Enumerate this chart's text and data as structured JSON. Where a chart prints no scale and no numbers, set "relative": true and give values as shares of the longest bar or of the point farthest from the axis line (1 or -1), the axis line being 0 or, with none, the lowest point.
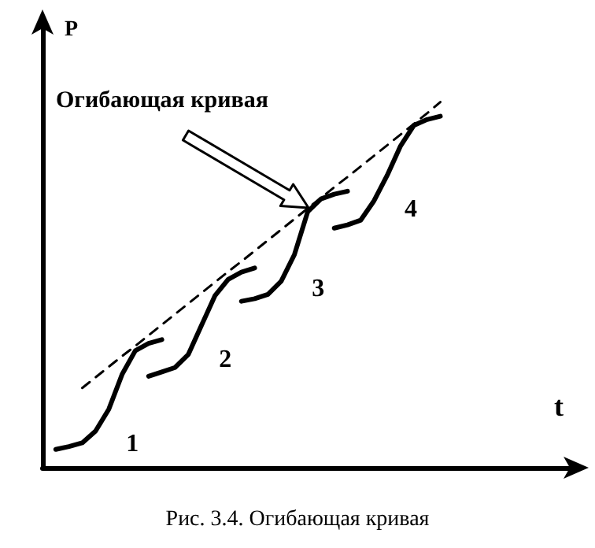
{
  "chart_data": {
    "type": "line",
    "relative": true,
    "title": "Рис. 3.4. Огибающая кривая",
    "xlabel": "t",
    "ylabel": "P",
    "grid": false,
    "legend": false,
    "marker": "none",
    "categories": [
      null,
      null,
      null,
      null,
      null,
      null,
      null,
      null,
      null,
      null,
      null,
      null,
      null,
      null,
      null,
      null,
      null,
      null,
      null,
      null,
      null,
      null,
      null,
      null,
      null,
      null,
      null,
      null,
      null,
      null,
      null,
      null,
      null,
      null,
      null,
      null,
      null,
      null,
      null,
      null,
      null
    ],
    "series": [
      {
        "name": "1",
        "color": "#000000",
        "values": [
          null,
          0.05,
          0.058,
          0.068,
          0.1,
          0.16,
          0.255,
          0.32,
          0.34,
          0.35,
          null,
          null,
          null,
          null,
          null,
          null,
          null,
          null,
          null,
          null,
          null,
          null,
          null,
          null,
          null,
          null,
          null,
          null,
          null,
          null,
          null,
          null,
          null,
          null,
          null,
          null,
          null,
          null,
          null,
          null,
          null
        ]
      },
      {
        "name": "2",
        "color": "#000000",
        "values": [
          null,
          null,
          null,
          null,
          null,
          null,
          null,
          null,
          0.25,
          0.262,
          0.274,
          0.31,
          0.39,
          0.47,
          0.515,
          0.535,
          0.546,
          null,
          null,
          null,
          null,
          null,
          null,
          null,
          null,
          null,
          null,
          null,
          null,
          null,
          null,
          null,
          null,
          null,
          null,
          null,
          null,
          null,
          null,
          null,
          null
        ]
      },
      {
        "name": "3",
        "color": "#000000",
        "values": [
          null,
          null,
          null,
          null,
          null,
          null,
          null,
          null,
          null,
          null,
          null,
          null,
          null,
          null,
          null,
          0.455,
          0.462,
          0.474,
          0.51,
          0.583,
          0.7,
          0.735,
          0.748,
          0.756,
          null,
          null,
          null,
          null,
          null,
          null,
          null,
          null,
          null,
          null,
          null,
          null,
          null,
          null,
          null,
          null,
          null
        ]
      },
      {
        "name": "4",
        "color": "#000000",
        "values": [
          null,
          null,
          null,
          null,
          null,
          null,
          null,
          null,
          null,
          null,
          null,
          null,
          null,
          null,
          null,
          null,
          null,
          null,
          null,
          null,
          null,
          null,
          0.655,
          0.664,
          0.677,
          0.73,
          0.8,
          0.88,
          0.936,
          0.952,
          0.961,
          null,
          null,
          null,
          null,
          null,
          null,
          null,
          null,
          null,
          null
        ]
      },
      {
        "color": "#000000",
        "line_style": "dashed",
        "values": [
          null,
          null,
          null,
          0.218,
          0.247,
          0.276,
          0.305,
          0.333,
          0.362,
          0.391,
          0.42,
          0.449,
          0.478,
          0.507,
          0.536,
          0.564,
          0.593,
          0.622,
          0.651,
          0.68,
          0.709,
          0.738,
          0.767,
          0.795,
          0.824,
          0.853,
          0.882,
          0.911,
          0.94,
          0.969,
          1.0,
          null,
          null,
          null,
          null,
          null,
          null,
          null,
          null,
          null,
          null
        ]
      }
    ],
    "annotations": [
      "Огибающая кривая"
    ]
  }
}
